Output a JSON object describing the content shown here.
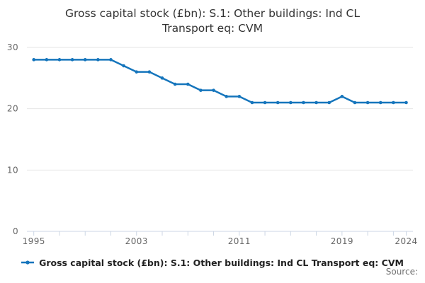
{
  "title_lines": [
    "Gross capital stock (£bn): S.1: Other buildings: Ind CL",
    "Transport eq: CVM"
  ],
  "legend": {
    "label": "Gross capital stock (£bn): S.1: Other buildings: Ind CL Transport eq: CVM"
  },
  "source": {
    "label": "Source:"
  },
  "colors": {
    "series_line": "#1575bc",
    "grid_line": "#e6e6e6",
    "axis_line": "#ccd6e4",
    "tick_text": "#666666",
    "title_text": "#333333",
    "legend_text": "#222222",
    "source_text": "#6f6f6f"
  },
  "chart_data": {
    "type": "line",
    "title": "Gross capital stock (£bn): S.1: Other buildings: Ind CL Transport eq: CVM",
    "x": [
      1995,
      1996,
      1997,
      1998,
      1999,
      2000,
      2001,
      2002,
      2003,
      2004,
      2005,
      2006,
      2007,
      2008,
      2009,
      2010,
      2011,
      2012,
      2013,
      2014,
      2015,
      2016,
      2017,
      2018,
      2019,
      2020,
      2021,
      2022,
      2023,
      2024
    ],
    "series": [
      {
        "name": "Gross capital stock (£bn): S.1: Other buildings: Ind CL Transport eq: CVM",
        "values": [
          28,
          28,
          28,
          28,
          28,
          28,
          28,
          27,
          26,
          26,
          25,
          24,
          24,
          23,
          23,
          22,
          22,
          21,
          21,
          21,
          21,
          21,
          21,
          21,
          22,
          21,
          21,
          21,
          21,
          21
        ]
      }
    ],
    "xlabel": "",
    "ylabel": "",
    "ylim": [
      0,
      30
    ],
    "yticks": [
      0,
      10,
      20,
      30
    ],
    "xticks_labeled": [
      1995,
      2003,
      2011,
      2019,
      2024
    ],
    "xtick_interval_years": 2,
    "grid": "horizontal-only",
    "marker": "dot",
    "legend_position": "bottom-center"
  }
}
